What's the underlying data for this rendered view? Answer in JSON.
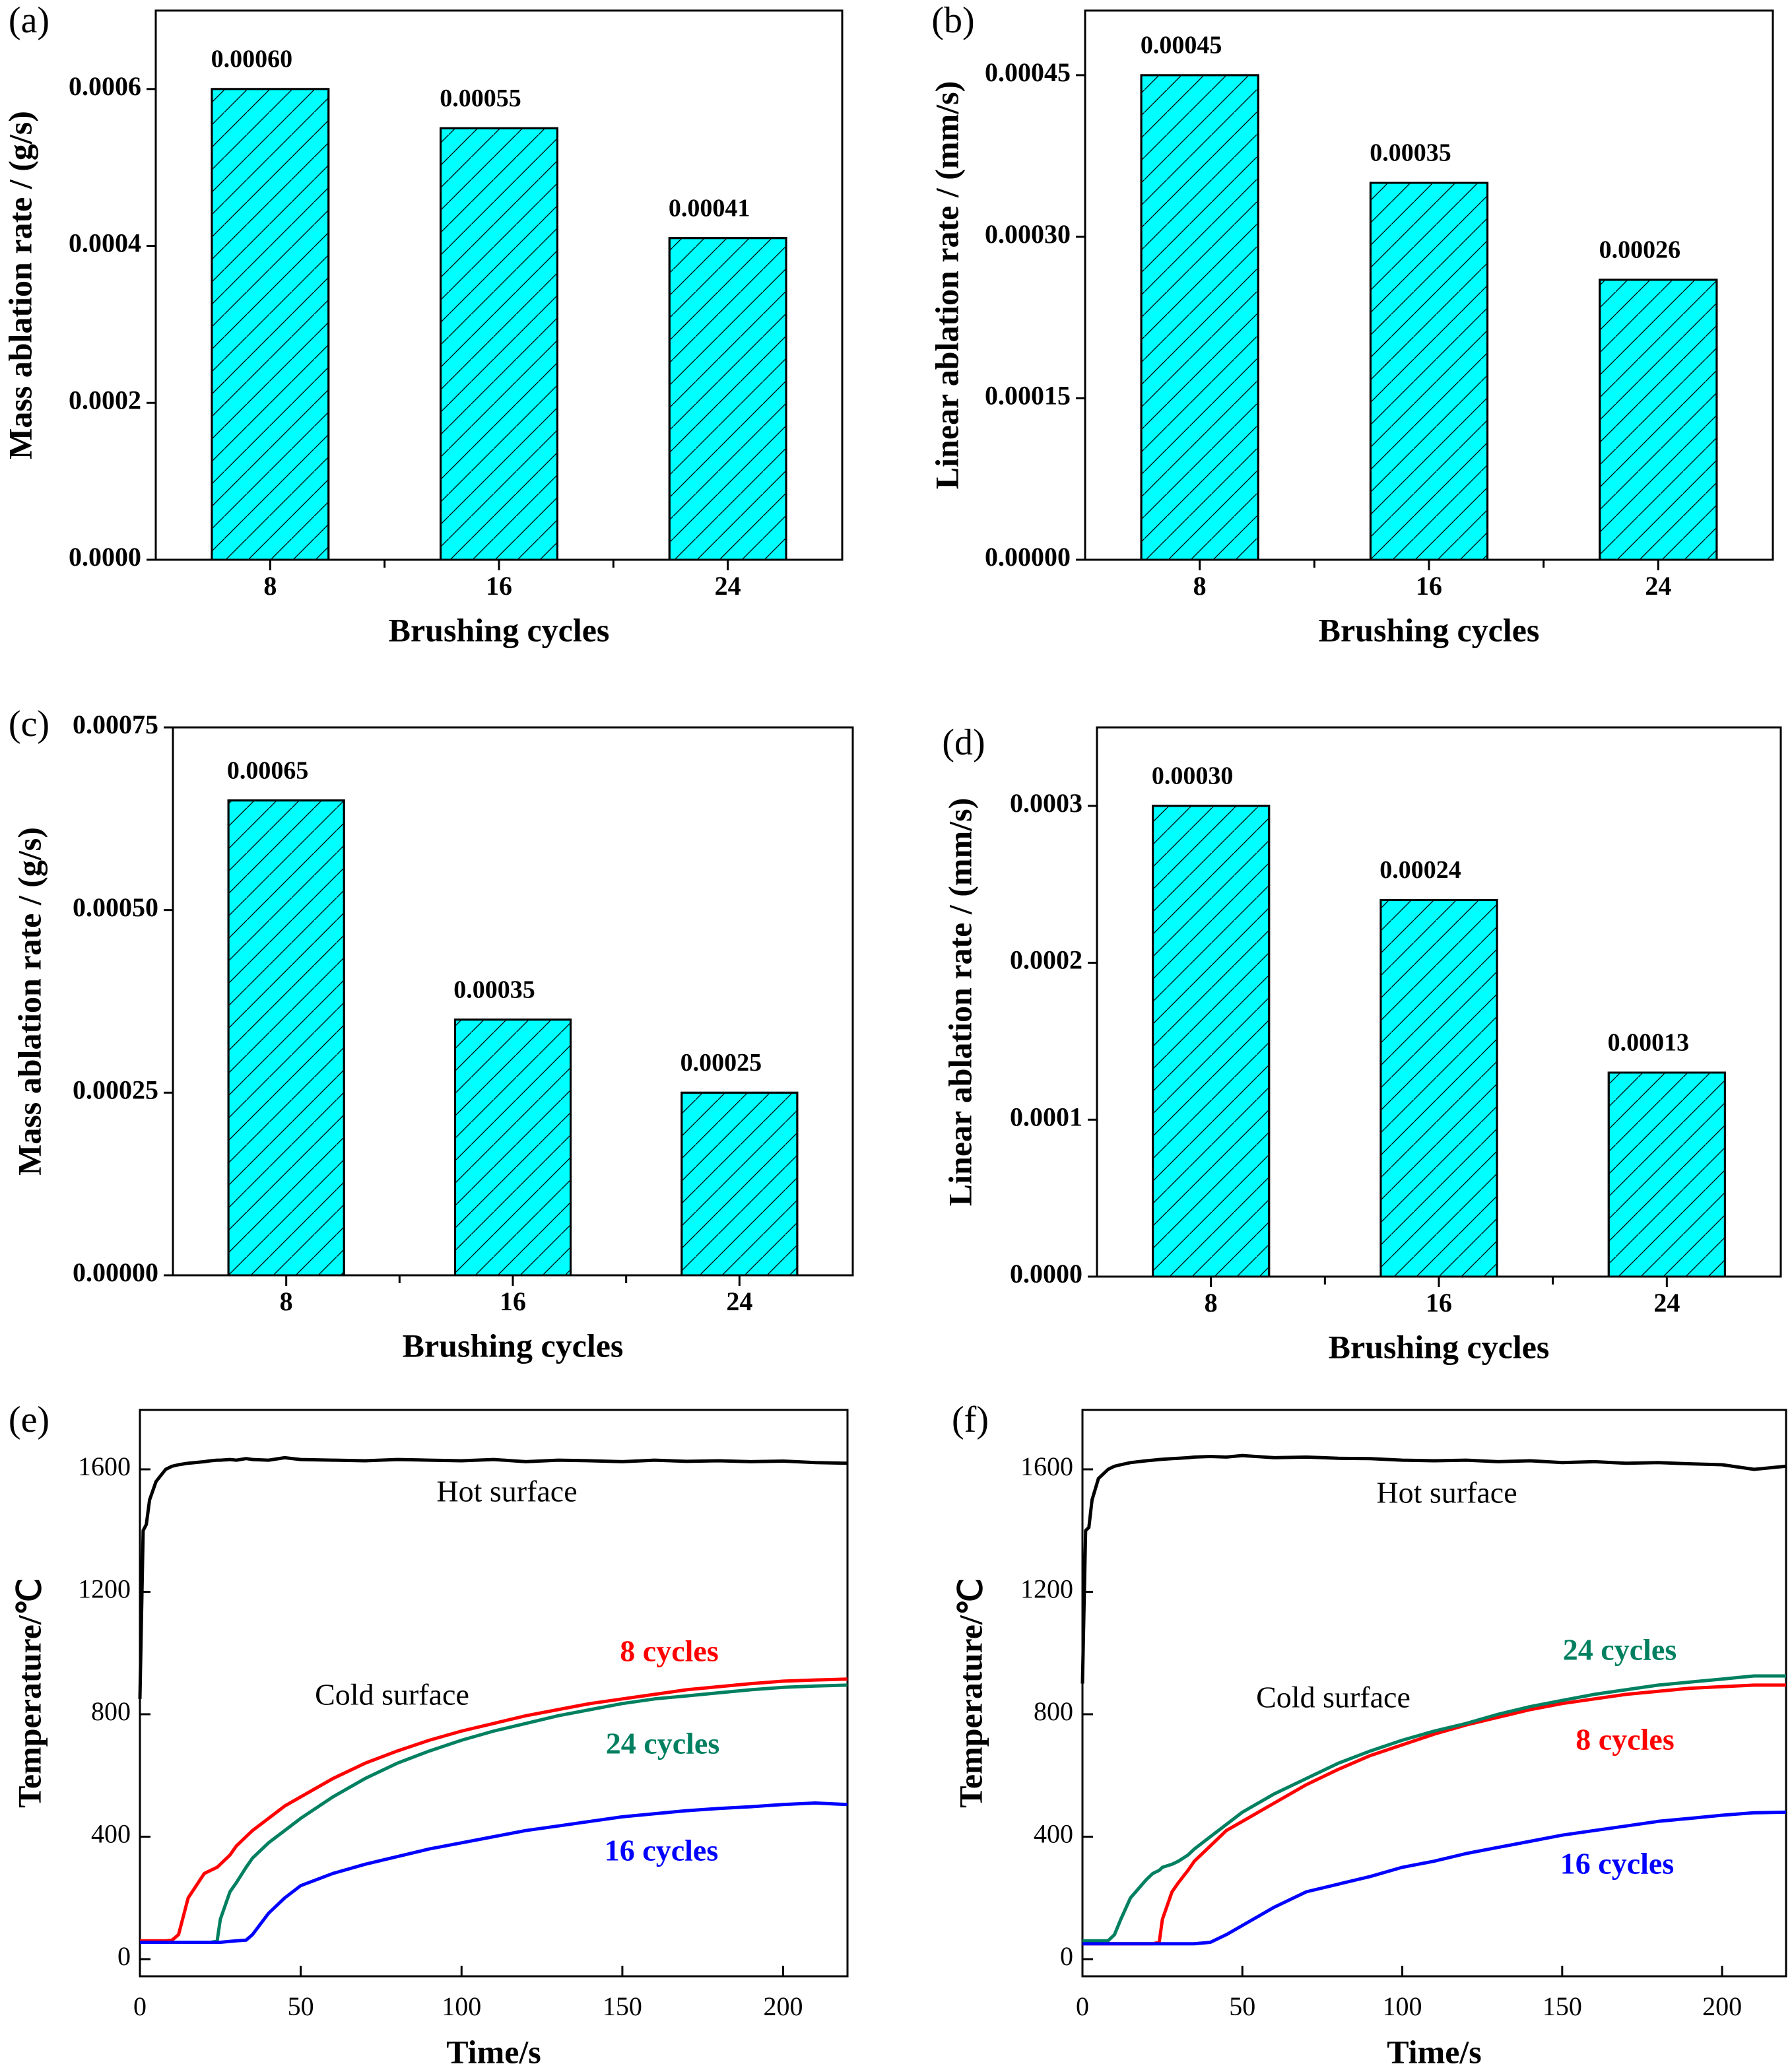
{
  "chart_data": [
    {
      "type": "bar",
      "panel_label": "(a)",
      "ylabel": "Mass ablation rate / (g/s)",
      "xlabel": "Brushing cycles",
      "categories": [
        "8",
        "16",
        "24"
      ],
      "values": [
        0.0006,
        0.00055,
        0.00041
      ],
      "value_labels": [
        "0.00060",
        "0.00055",
        "0.00041"
      ],
      "color": "#00ffff",
      "hatch": true,
      "ylim": [
        0,
        0.0007
      ],
      "yticks": [
        {
          "value": 0,
          "label": "0.0000"
        },
        {
          "value": 0.0002,
          "label": "0.0002"
        },
        {
          "value": 0.0004,
          "label": "0.0004"
        },
        {
          "value": 0.0006,
          "label": "0.0006"
        }
      ]
    },
    {
      "type": "bar",
      "panel_label": "(b)",
      "ylabel": "Linear ablation rate / (mm/s)",
      "xlabel": "Brushing cycles",
      "categories": [
        "8",
        "16",
        "24"
      ],
      "values": [
        0.00045,
        0.00035,
        0.00026
      ],
      "value_labels": [
        "0.00045",
        "0.00035",
        "0.00026"
      ],
      "color": "#00ffff",
      "hatch": true,
      "ylim": [
        0,
        0.00051
      ],
      "yticks": [
        {
          "value": 0,
          "label": "0.00000"
        },
        {
          "value": 0.00015,
          "label": "0.00015"
        },
        {
          "value": 0.0003,
          "label": "0.00030"
        },
        {
          "value": 0.00045,
          "label": "0.00045"
        }
      ]
    },
    {
      "type": "bar",
      "panel_label": "(c)",
      "ylabel": "Mass ablation rate / (g/s)",
      "xlabel": "Brushing cycles",
      "categories": [
        "8",
        "16",
        "24"
      ],
      "values": [
        0.00065,
        0.00035,
        0.00025
      ],
      "value_labels": [
        "0.00065",
        "0.00035",
        "0.00025"
      ],
      "color": "#00ffff",
      "hatch": true,
      "ylim": [
        0,
        0.00075
      ],
      "yticks": [
        {
          "value": 0,
          "label": "0.00000"
        },
        {
          "value": 0.00025,
          "label": "0.00025"
        },
        {
          "value": 0.0005,
          "label": "0.00050"
        },
        {
          "value": 0.00075,
          "label": "0.00075"
        }
      ]
    },
    {
      "type": "bar",
      "panel_label": "(d)",
      "ylabel": "Linear ablation rate / (mm/s)",
      "xlabel": "Brushing cycles",
      "categories": [
        "8",
        "16",
        "24"
      ],
      "values": [
        0.0003,
        0.00024,
        0.00013
      ],
      "value_labels": [
        "0.00030",
        "0.00024",
        "0.00013"
      ],
      "color": "#00ffff",
      "hatch": true,
      "ylim": [
        0,
        0.00035
      ],
      "yticks": [
        {
          "value": 0,
          "label": "0.0000"
        },
        {
          "value": 0.0001,
          "label": "0.0001"
        },
        {
          "value": 0.0002,
          "label": "0.0002"
        },
        {
          "value": 0.0003,
          "label": "0.0003"
        }
      ]
    },
    {
      "type": "line",
      "panel_label": "(e)",
      "ylabel": "Temperature/℃",
      "xlabel": "Time/s",
      "annotation": "Cold surface",
      "x": [
        0,
        1,
        2,
        3,
        5,
        8,
        10,
        12,
        15,
        20,
        22,
        24,
        25,
        28,
        30,
        33,
        35,
        40,
        45,
        50,
        60,
        70,
        80,
        90,
        100,
        110,
        120,
        130,
        140,
        150,
        160,
        170,
        180,
        190,
        200,
        210,
        220
      ],
      "series": [
        {
          "name": "Hot surface",
          "color": "#000000",
          "values": [
            850,
            1400,
            1420,
            1500,
            1560,
            1600,
            1610,
            1615,
            1620,
            1625,
            1628,
            1630,
            1630,
            1632,
            1630,
            1635,
            1632,
            1630,
            1638,
            1632,
            1630,
            1628,
            1632,
            1630,
            1628,
            1632,
            1625,
            1630,
            1628,
            1625,
            1630,
            1626,
            1628,
            1625,
            1627,
            1622,
            1620
          ]
        },
        {
          "name": "8 cycles",
          "color": "#ff0000",
          "values": [
            60,
            60,
            60,
            60,
            60,
            60,
            62,
            80,
            200,
            280,
            290,
            300,
            310,
            340,
            370,
            400,
            420,
            460,
            500,
            530,
            590,
            640,
            680,
            715,
            745,
            770,
            795,
            815,
            835,
            850,
            865,
            880,
            890,
            900,
            908,
            912,
            915
          ]
        },
        {
          "name": "24 cycles",
          "color": "#008060",
          "values": [
            55,
            55,
            55,
            55,
            55,
            55,
            55,
            55,
            55,
            55,
            55,
            58,
            130,
            220,
            250,
            300,
            330,
            380,
            420,
            460,
            530,
            590,
            640,
            680,
            715,
            745,
            770,
            795,
            815,
            835,
            850,
            860,
            870,
            880,
            888,
            892,
            895
          ]
        },
        {
          "name": "16 cycles",
          "color": "#0000ff",
          "values": [
            55,
            55,
            55,
            55,
            55,
            55,
            55,
            55,
            55,
            55,
            55,
            55,
            55,
            58,
            60,
            62,
            80,
            150,
            200,
            240,
            280,
            310,
            335,
            360,
            380,
            400,
            420,
            435,
            450,
            465,
            475,
            485,
            492,
            498,
            505,
            510,
            505
          ]
        }
      ],
      "xlim": [
        0,
        220
      ],
      "xticks": [
        0,
        50,
        100,
        150,
        200
      ],
      "ylim": [
        -56,
        1794
      ],
      "yticks": [
        0,
        400,
        800,
        1200,
        1600
      ]
    },
    {
      "type": "line",
      "panel_label": "(f)",
      "ylabel": "Temperature/℃",
      "xlabel": "Time/s",
      "annotation": "Cold surface",
      "x": [
        0,
        1,
        2,
        3,
        5,
        8,
        10,
        12,
        15,
        20,
        22,
        24,
        25,
        28,
        30,
        33,
        35,
        40,
        45,
        50,
        60,
        70,
        80,
        90,
        100,
        110,
        120,
        130,
        140,
        150,
        160,
        170,
        180,
        190,
        200,
        210,
        220
      ],
      "series": [
        {
          "name": "Hot surface",
          "color": "#000000",
          "values": [
            900,
            1400,
            1410,
            1500,
            1570,
            1600,
            1610,
            1615,
            1622,
            1628,
            1630,
            1632,
            1633,
            1635,
            1636,
            1638,
            1640,
            1642,
            1640,
            1645,
            1638,
            1640,
            1636,
            1635,
            1630,
            1628,
            1630,
            1625,
            1628,
            1622,
            1625,
            1620,
            1622,
            1618,
            1615,
            1600,
            1610
          ]
        },
        {
          "name": "8 cycles",
          "color": "#ff0000",
          "values": [
            50,
            50,
            50,
            50,
            50,
            50,
            50,
            50,
            50,
            50,
            50,
            55,
            130,
            220,
            250,
            290,
            320,
            370,
            420,
            450,
            510,
            570,
            620,
            665,
            700,
            735,
            765,
            790,
            815,
            835,
            850,
            865,
            875,
            885,
            890,
            895,
            895
          ]
        },
        {
          "name": "24 cycles",
          "color": "#008060",
          "values": [
            60,
            60,
            60,
            60,
            60,
            60,
            80,
            130,
            200,
            260,
            280,
            290,
            300,
            310,
            320,
            340,
            360,
            400,
            440,
            480,
            540,
            590,
            640,
            680,
            715,
            745,
            770,
            800,
            825,
            845,
            865,
            880,
            895,
            905,
            915,
            925,
            925
          ]
        },
        {
          "name": "16 cycles",
          "color": "#0000ff",
          "values": [
            50,
            50,
            50,
            50,
            50,
            50,
            50,
            50,
            50,
            50,
            50,
            50,
            50,
            50,
            50,
            50,
            50,
            55,
            80,
            110,
            170,
            220,
            245,
            270,
            300,
            320,
            345,
            365,
            385,
            405,
            420,
            435,
            450,
            460,
            470,
            478,
            480
          ]
        }
      ],
      "xlim": [
        0,
        220
      ],
      "xticks": [
        0,
        50,
        100,
        150,
        200
      ],
      "ylim": [
        -56,
        1794
      ],
      "yticks": [
        0,
        400,
        800,
        1200,
        1600
      ]
    }
  ]
}
